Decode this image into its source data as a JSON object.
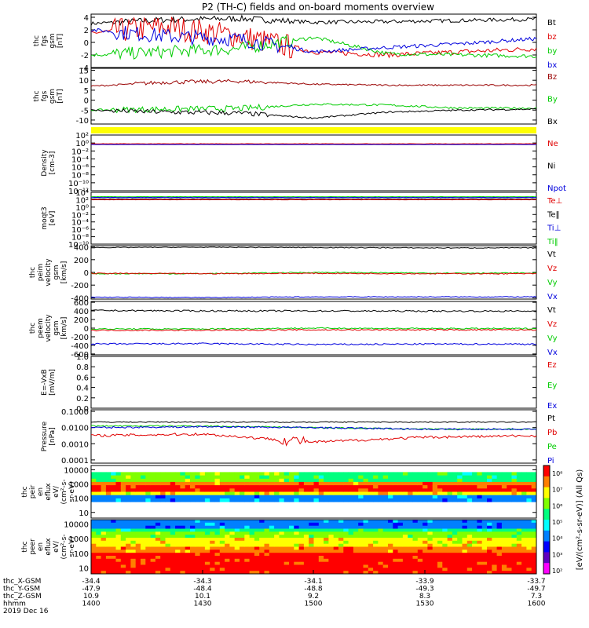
{
  "title": "P2 (TH-C) fields and on-board moments overview",
  "panels": [
    {
      "id": "p1",
      "ylabel": [
        "thc",
        "fgs",
        "gsm",
        "[nT]"
      ],
      "ticks": [
        [
          4,
          "4"
        ],
        [
          2,
          "2"
        ],
        [
          0,
          "0"
        ],
        [
          -2,
          "-2"
        ],
        [
          -4,
          "-4"
        ]
      ],
      "ymin": -4,
      "ymax": 4.5,
      "legend": [
        [
          "Bt",
          "#000000"
        ],
        [
          "bz",
          "#e00000"
        ],
        [
          "by",
          "#00cc00"
        ],
        [
          "bx",
          "#0000dd"
        ]
      ]
    },
    {
      "id": "p2",
      "ylabel": [
        "thc",
        "fgs",
        "gsm",
        "[nT]"
      ],
      "ticks": [
        [
          15,
          "15"
        ],
        [
          10,
          "10"
        ],
        [
          5,
          "5"
        ],
        [
          0,
          "0"
        ],
        [
          -5,
          "-5"
        ],
        [
          -10,
          "-10"
        ]
      ],
      "ymin": -12,
      "ymax": 16,
      "legend": [
        [
          "Bz",
          "#990000"
        ],
        [
          "By",
          "#00cc00"
        ],
        [
          "Bx",
          "#000000"
        ]
      ]
    },
    {
      "id": "p3",
      "ylabel": [
        "Density",
        "[cm-3]"
      ],
      "ticks": [
        [
          2,
          "10²"
        ],
        [
          0,
          "10⁰"
        ],
        [
          -2,
          "10⁻²"
        ],
        [
          -4,
          "10⁻⁴"
        ],
        [
          -6,
          "10⁻⁶"
        ],
        [
          -8,
          "10⁻⁸"
        ],
        [
          -10,
          "10⁻¹⁰"
        ],
        [
          -12,
          "10⁻¹²"
        ]
      ],
      "ymin": -12,
      "ymax": 2,
      "legend": [
        [
          "Ne",
          "#e00000"
        ],
        [
          "Ni",
          "#000000"
        ],
        [
          "Npot",
          "#0000dd"
        ]
      ]
    },
    {
      "id": "p4",
      "ylabel": [
        "moqt3",
        "[eV]"
      ],
      "ticks": [
        [
          4,
          "10⁴"
        ],
        [
          2,
          "10²"
        ],
        [
          0,
          "10⁰"
        ],
        [
          -2,
          "10⁻²"
        ],
        [
          -4,
          "10⁻⁴"
        ],
        [
          -6,
          "10⁻⁶"
        ],
        [
          -8,
          "10⁻⁸"
        ],
        [
          -10,
          "10⁻¹⁰"
        ]
      ],
      "ymin": -10,
      "ymax": 4,
      "legend": [
        [
          "Te⊥",
          "#e00000"
        ],
        [
          "Te‖",
          "#000000"
        ],
        [
          "Ti⊥",
          "#0000dd"
        ],
        [
          "Ti‖",
          "#00cc00"
        ]
      ]
    },
    {
      "id": "p5",
      "ylabel": [
        "thc",
        "peim",
        "velocity",
        "gsm",
        "[km/s]"
      ],
      "ticks": [
        [
          400,
          "400"
        ],
        [
          200,
          "200"
        ],
        [
          0,
          "0"
        ],
        [
          -200,
          "-200"
        ],
        [
          -400,
          "-400"
        ]
      ],
      "ymin": -420,
      "ymax": 420,
      "legend": [
        [
          "Vt",
          "#000000"
        ],
        [
          "Vz",
          "#e00000"
        ],
        [
          "Vy",
          "#00cc00"
        ],
        [
          "Vx",
          "#0000dd"
        ]
      ]
    },
    {
      "id": "p6",
      "ylabel": [
        "thc",
        "peem",
        "velocity",
        "gsm",
        "[km/s]"
      ],
      "ticks": [
        [
          600,
          "600"
        ],
        [
          400,
          "400"
        ],
        [
          200,
          "200"
        ],
        [
          0,
          "0"
        ],
        [
          -200,
          "-200"
        ],
        [
          -400,
          "-400"
        ],
        [
          -600,
          "-600"
        ]
      ],
      "ymin": -620,
      "ymax": 620,
      "legend": [
        [
          "Vt",
          "#000000"
        ],
        [
          "Vz",
          "#e00000"
        ],
        [
          "Vy",
          "#00cc00"
        ],
        [
          "Vx",
          "#0000dd"
        ]
      ]
    },
    {
      "id": "p7",
      "ylabel": [
        "E=-VxB",
        "[mV/m]"
      ],
      "ticks": [
        [
          1.0,
          "1.0"
        ],
        [
          0.8,
          "0.8"
        ],
        [
          0.6,
          "0.6"
        ],
        [
          0.4,
          "0.4"
        ],
        [
          0.2,
          "0.2"
        ],
        [
          0.0,
          "0.0"
        ]
      ],
      "ymin": 0,
      "ymax": 1.0,
      "legend": [
        [
          "Ez",
          "#e00000"
        ],
        [
          "Ey",
          "#00cc00"
        ],
        [
          "Ex",
          "#0000dd"
        ]
      ]
    },
    {
      "id": "p8",
      "ylabel": [
        "Pressure",
        "[nPa]"
      ],
      "ticks": [
        [
          -1,
          "0.1000"
        ],
        [
          -2,
          "0.0100"
        ],
        [
          -3,
          "0.0010"
        ],
        [
          -4,
          "0.0001"
        ]
      ],
      "ymin": -4.2,
      "ymax": -0.9,
      "legend": [
        [
          "Pt",
          "#000000"
        ],
        [
          "Pb",
          "#e00000"
        ],
        [
          "Pe",
          "#00cc00"
        ],
        [
          "Pi",
          "#0000dd"
        ]
      ]
    },
    {
      "id": "p9",
      "ylabel": [
        "thc",
        "peir",
        "en",
        "eflux",
        "eV/",
        "(cm²-s-",
        "sr-eV)"
      ],
      "ticks": [
        [
          4,
          "10000"
        ],
        [
          3,
          "1000"
        ],
        [
          2,
          "100"
        ],
        [
          1,
          "10"
        ]
      ],
      "ymin": 0.6,
      "ymax": 4.3,
      "legend": []
    },
    {
      "id": "p10",
      "ylabel": [
        "thc",
        "peer",
        "en",
        "eflux",
        "eV/",
        "(cm²-s-",
        "sr-eV)"
      ],
      "ticks": [
        [
          4,
          "10000"
        ],
        [
          3,
          "1000"
        ],
        [
          2,
          "100"
        ],
        [
          1,
          "10"
        ]
      ],
      "ymin": 0.6,
      "ymax": 4.3,
      "legend": []
    }
  ],
  "colorbar": {
    "ticks": [
      "10⁸",
      "10⁷",
      "10⁶",
      "10⁵",
      "10⁴",
      "10³",
      "10²"
    ],
    "label": "[eV/(cm²-s-sr-eV)] (All Qs)",
    "colors": [
      "#ff0000",
      "#ff7f00",
      "#ffff00",
      "#7fff00",
      "#00ff7f",
      "#00ffff",
      "#0080ff",
      "#0000ff",
      "#6000c0",
      "#ff00ff"
    ]
  },
  "footer": {
    "rows": [
      {
        "label": "thc_X-GSM",
        "values": [
          "-34.4",
          "-34.3",
          "-34.1",
          "-33.9",
          "-33.7"
        ]
      },
      {
        "label": "thc_Y-GSM",
        "values": [
          "-47.9",
          "-48.4",
          "-48.8",
          "-49.3",
          "-49.7"
        ]
      },
      {
        "label": "thc_Z-GSM",
        "values": [
          "10.9",
          "10.1",
          "9.2",
          "8.3",
          "7.3"
        ]
      },
      {
        "label": "hhmm",
        "values": [
          "1400",
          "1430",
          "1500",
          "1530",
          "1600"
        ]
      }
    ],
    "date": "2019 Dec 16"
  },
  "chart_data": {
    "type": "line",
    "title": "P2 (TH-C) fields and on-board moments overview",
    "x": [
      "1400",
      "1430",
      "1500",
      "1530",
      "1600"
    ],
    "series": [
      {
        "panel": "thc fgs gsm [nT]",
        "name": "Bt",
        "values": [
          3.0,
          3.6,
          3.0,
          3.2,
          3.6
        ]
      },
      {
        "panel": "thc fgs gsm [nT]",
        "name": "bz",
        "values": [
          1.5,
          2.5,
          -1.5,
          -2.0,
          -1.0
        ]
      },
      {
        "panel": "thc fgs gsm [nT]",
        "name": "by",
        "values": [
          -2.0,
          -1.5,
          0.5,
          -1.5,
          -2.0
        ]
      },
      {
        "panel": "thc fgs gsm [nT]",
        "name": "bx",
        "values": [
          2.0,
          1.0,
          -2.0,
          -0.5,
          0.5
        ]
      },
      {
        "panel": "thc fgs gsm [nT]",
        "name": "Bz",
        "values": [
          7.5,
          9.0,
          8.0,
          7.5,
          7.5
        ]
      },
      {
        "panel": "thc fgs gsm [nT]",
        "name": "By",
        "values": [
          -5.0,
          -4.5,
          -3.5,
          -4.0,
          -4.0
        ]
      },
      {
        "panel": "thc fgs gsm [nT]",
        "name": "Bx",
        "values": [
          -5.0,
          -6.0,
          -9.0,
          -5.0,
          -4.5
        ]
      },
      {
        "panel": "thc peim velocity gsm [km/s]",
        "name": "Vt",
        "values": [
          390,
          395,
          390,
          385,
          385
        ]
      },
      {
        "panel": "thc peim velocity gsm [km/s]",
        "name": "Vx",
        "values": [
          -390,
          -395,
          -385,
          -385,
          -385
        ]
      },
      {
        "panel": "thc peim velocity gsm [km/s]",
        "name": "Vy",
        "values": [
          -20,
          -20,
          0,
          -10,
          -10
        ]
      },
      {
        "panel": "thc peim velocity gsm [km/s]",
        "name": "Vz",
        "values": [
          -15,
          -20,
          -15,
          -20,
          -20
        ]
      },
      {
        "panel": "Pressure [nPa]",
        "name": "Pt",
        "values": [
          0.022,
          0.022,
          0.022,
          0.022,
          0.022
        ]
      },
      {
        "panel": "Pressure [nPa]",
        "name": "Pb",
        "values": [
          0.003,
          0.004,
          0.001,
          0.003,
          0.003
        ]
      },
      {
        "panel": "Pressure [nPa]",
        "name": "Pe",
        "values": [
          0.012,
          0.013,
          0.009,
          0.008,
          0.008
        ]
      },
      {
        "panel": "Pressure [nPa]",
        "name": "Pi",
        "values": [
          0.01,
          0.011,
          0.01,
          0.008,
          0.008
        ]
      }
    ]
  }
}
